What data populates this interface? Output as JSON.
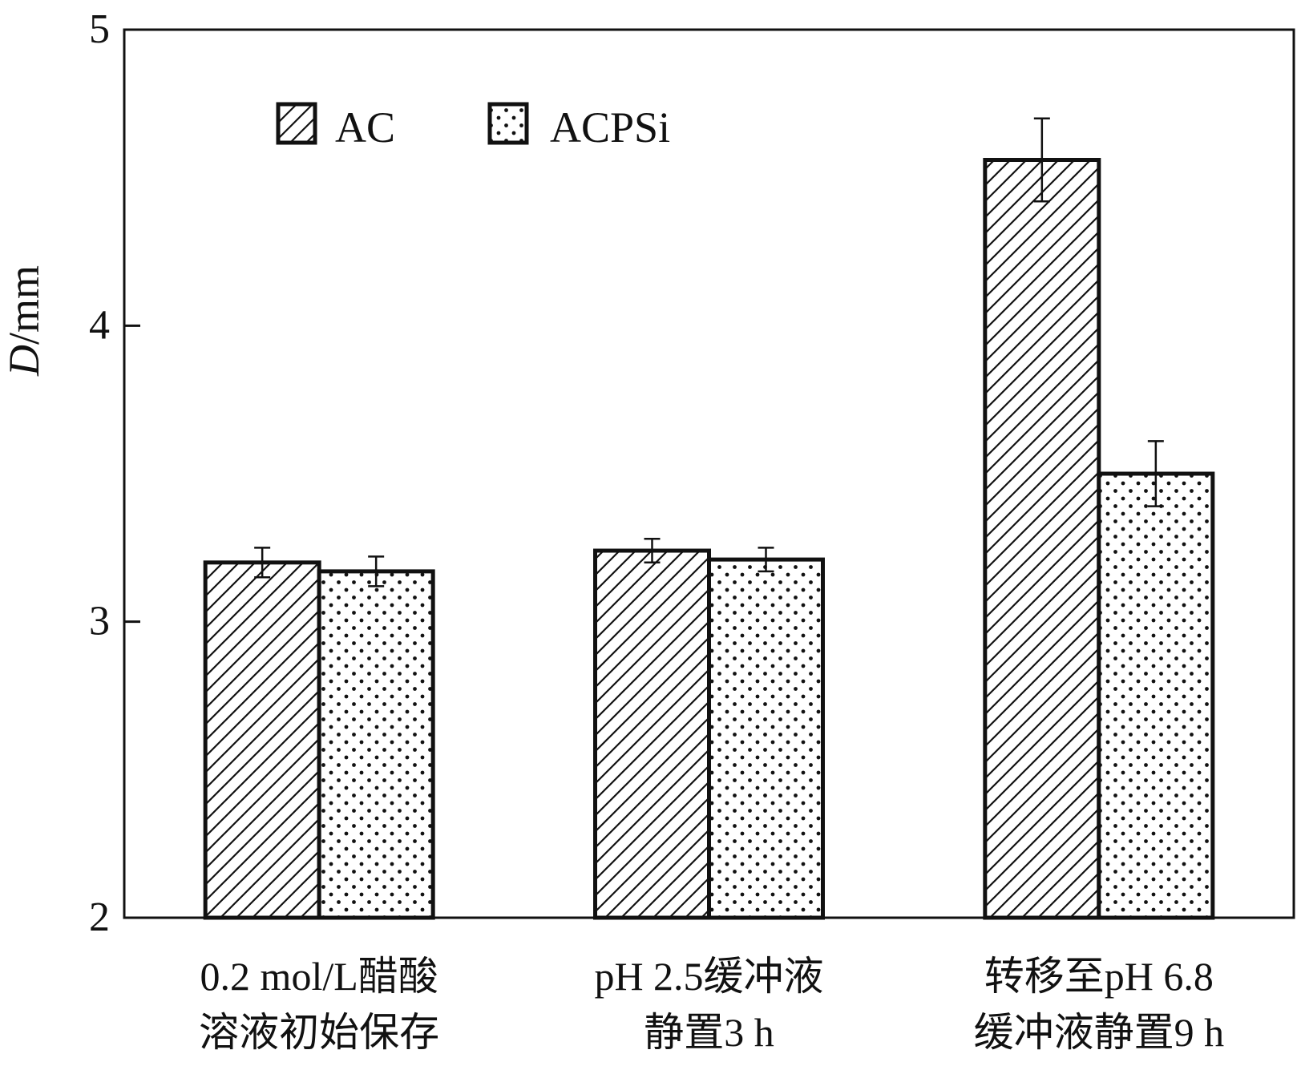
{
  "chart_data": {
    "type": "bar",
    "title": "",
    "xlabel": "",
    "ylabel_italic": "D",
    "ylabel_unit": "/mm",
    "ylim": [
      2,
      5
    ],
    "yticks": [
      "2",
      "3",
      "4",
      "5"
    ],
    "categories": [
      [
        "0.2 mol/L醋酸",
        "溶液初始保存"
      ],
      [
        "pH 2.5缓冲液",
        "静置3 h"
      ],
      [
        "转移至pH 6.8",
        "缓冲液静置9 h"
      ]
    ],
    "series": [
      {
        "name": "AC",
        "pattern": "hatch",
        "values": [
          3.2,
          3.24,
          4.56
        ],
        "errors": [
          0.05,
          0.04,
          0.14
        ]
      },
      {
        "name": "ACPSi",
        "pattern": "dots",
        "values": [
          3.17,
          3.21,
          3.5
        ],
        "errors": [
          0.05,
          0.04,
          0.11
        ]
      }
    ],
    "grid": false,
    "legend_position": "top-left",
    "colors": {
      "stroke": "#111111",
      "fill": "#ffffff"
    }
  }
}
